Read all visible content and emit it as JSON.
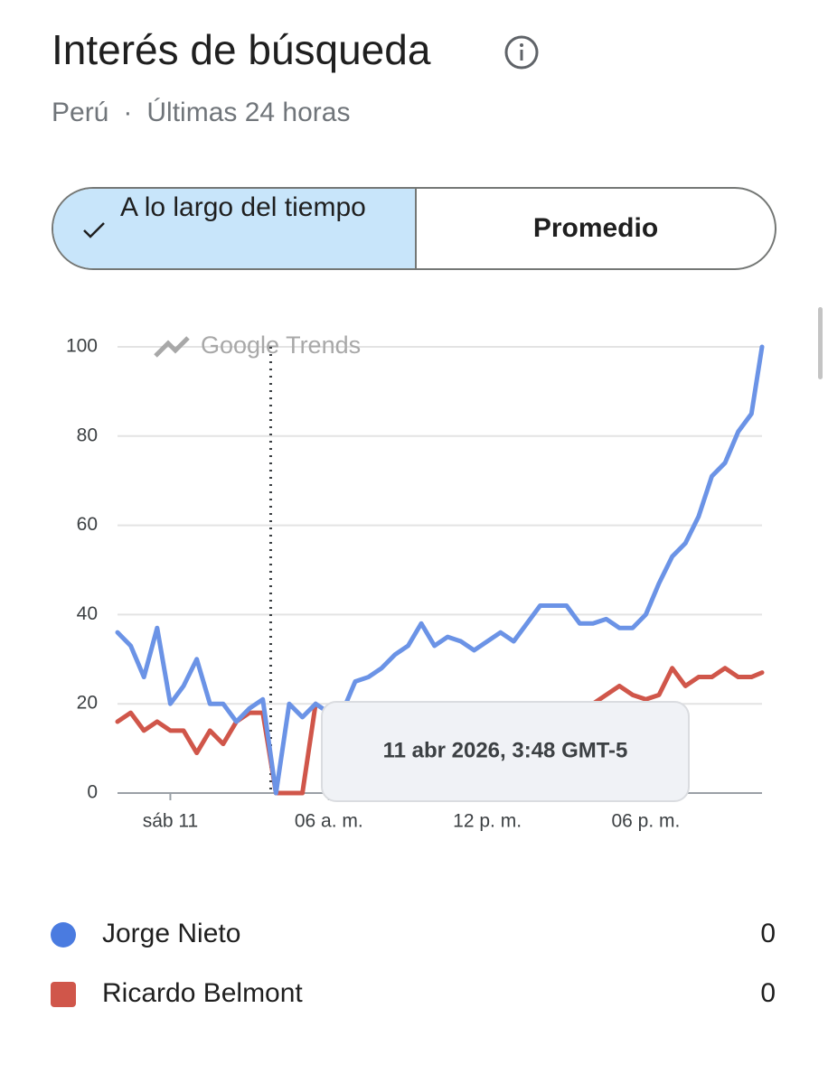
{
  "header": {
    "title": "Interés de búsqueda",
    "subtitle_region": "Perú",
    "subtitle_separator": "·",
    "subtitle_period": "Últimas 24 horas"
  },
  "toggle": {
    "options": [
      "A lo largo del tiempo",
      "Promedio"
    ],
    "selected": 0
  },
  "chart_data": {
    "type": "line",
    "watermark": "Google Trends",
    "x": [
      -2,
      -1.5,
      -1,
      -0.5,
      0,
      0.5,
      1,
      1.5,
      2,
      2.5,
      3,
      3.5,
      4,
      4.5,
      5,
      5.5,
      6,
      6.5,
      7,
      7.5,
      8,
      8.5,
      9,
      9.5,
      10,
      10.5,
      11,
      11.5,
      12,
      12.5,
      13,
      13.5,
      14,
      14.5,
      15,
      15.5,
      16,
      16.5,
      17,
      17.5,
      18,
      18.5,
      19,
      19.5,
      20,
      20.5,
      21,
      21.5,
      22,
      22.4
    ],
    "xlim": [
      -2,
      22.4
    ],
    "xticks": [
      {
        "value": 0,
        "label": "sáb 11"
      },
      {
        "value": 6,
        "label": "06 a. m."
      },
      {
        "value": 12,
        "label": "12 p. m."
      },
      {
        "value": 18,
        "label": "06 p. m."
      }
    ],
    "ylim": [
      0,
      100
    ],
    "yticks": [
      0,
      20,
      40,
      60,
      80,
      100
    ],
    "grid": true,
    "series": [
      {
        "name": "Jorge Nieto",
        "color": "#6b93e6",
        "legend_color": "#4a7be0",
        "legend_value": 0,
        "values": [
          36,
          33,
          26,
          37,
          20,
          24,
          30,
          20,
          20,
          16,
          19,
          21,
          0,
          20,
          17,
          20,
          18,
          18,
          25,
          26,
          28,
          31,
          33,
          38,
          33,
          35,
          34,
          32,
          34,
          36,
          34,
          38,
          42,
          42,
          42,
          38,
          38,
          39,
          37,
          37,
          40,
          47,
          53,
          56,
          62,
          71,
          74,
          81,
          85,
          100
        ]
      },
      {
        "name": "Ricardo Belmont",
        "color": "#d0564a",
        "legend_color": "#d0564a",
        "legend_value": 0,
        "values": [
          16,
          18,
          14,
          16,
          14,
          14,
          9,
          14,
          11,
          16,
          18,
          18,
          0,
          0,
          0,
          20,
          null,
          null,
          null,
          null,
          null,
          null,
          null,
          null,
          null,
          null,
          null,
          null,
          null,
          null,
          null,
          null,
          null,
          null,
          null,
          null,
          20,
          22,
          24,
          22,
          21,
          22,
          28,
          24,
          26,
          26,
          28,
          26,
          26,
          27
        ]
      }
    ],
    "hover": {
      "x": 3.8,
      "label": "11 abr 2026, 3:48 GMT-5"
    }
  }
}
